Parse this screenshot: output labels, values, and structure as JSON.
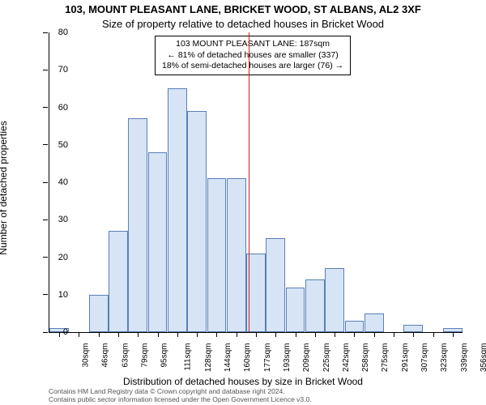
{
  "chart": {
    "type": "histogram",
    "title_main": "103, MOUNT PLEASANT LANE, BRICKET WOOD, ST ALBANS, AL2 3XF",
    "title_sub": "Size of property relative to detached houses in Bricket Wood",
    "y_axis_title": "Number of detached properties",
    "x_axis_title": "Distribution of detached houses by size in Bricket Wood",
    "background_color": "#ffffff",
    "bar_fill": "#d6e4f5",
    "bar_stroke": "#5a7fb5",
    "ref_line_color": "#d02020",
    "ylim": [
      0,
      80
    ],
    "ytick_step": 10,
    "y_ticks": [
      0,
      10,
      20,
      30,
      40,
      50,
      60,
      70,
      80
    ],
    "x_categories": [
      "30sqm",
      "46sqm",
      "63sqm",
      "79sqm",
      "95sqm",
      "111sqm",
      "128sqm",
      "144sqm",
      "160sqm",
      "177sqm",
      "193sqm",
      "209sqm",
      "225sqm",
      "242sqm",
      "258sqm",
      "275sqm",
      "291sqm",
      "307sqm",
      "323sqm",
      "339sqm",
      "356sqm"
    ],
    "bar_values": [
      1,
      0,
      10,
      27,
      57,
      48,
      65,
      59,
      41,
      41,
      21,
      25,
      12,
      14,
      17,
      3,
      5,
      0,
      2,
      0,
      1
    ],
    "ref_x_value": 187,
    "x_min": 30,
    "x_max": 356,
    "annotation": {
      "line1": "103 MOUNT PLEASANT LANE: 187sqm",
      "line2": "← 81% of detached houses are smaller (337)",
      "line3": "18% of semi-detached houses are larger (76) →"
    },
    "credits": {
      "line1": "Contains HM Land Registry data © Crown copyright and database right 2024.",
      "line2": "Contains public sector information licensed under the Open Government Licence v3.0."
    },
    "title_fontsize": 13,
    "label_fontsize": 11,
    "axis_title_fontsize": 12,
    "credits_fontsize": 8.5
  }
}
